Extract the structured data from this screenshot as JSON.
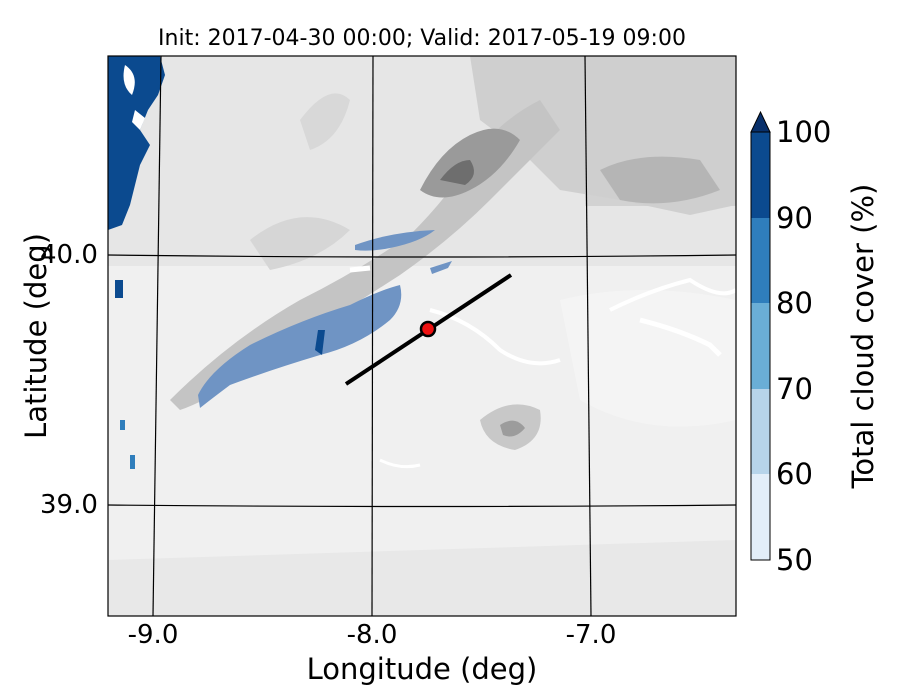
{
  "title": "Init: 2017-04-30 00:00; Valid: 2017-05-19 09:00",
  "axes": {
    "xlabel": "Longitude (deg)",
    "ylabel": "Latitude (deg)",
    "xticks": [
      "-9.0",
      "-8.0",
      "-7.0"
    ],
    "yticks": [
      "40.0",
      "39.0"
    ]
  },
  "colorbar": {
    "label": "Total cloud cover (%)",
    "ticks": [
      "100",
      "90",
      "80",
      "70",
      "60",
      "50"
    ],
    "colors": [
      "#0b4a8f",
      "#2f7ebc",
      "#6aaed6",
      "#b7d4ea",
      "#e3eef9"
    ],
    "extend": "max"
  },
  "map": {
    "terrain_shading": "grey filled contours",
    "cloud_fill_color": "#6f94c4",
    "cross_section_line_color": "#000000",
    "point_marker_color": "#ee1111"
  }
}
